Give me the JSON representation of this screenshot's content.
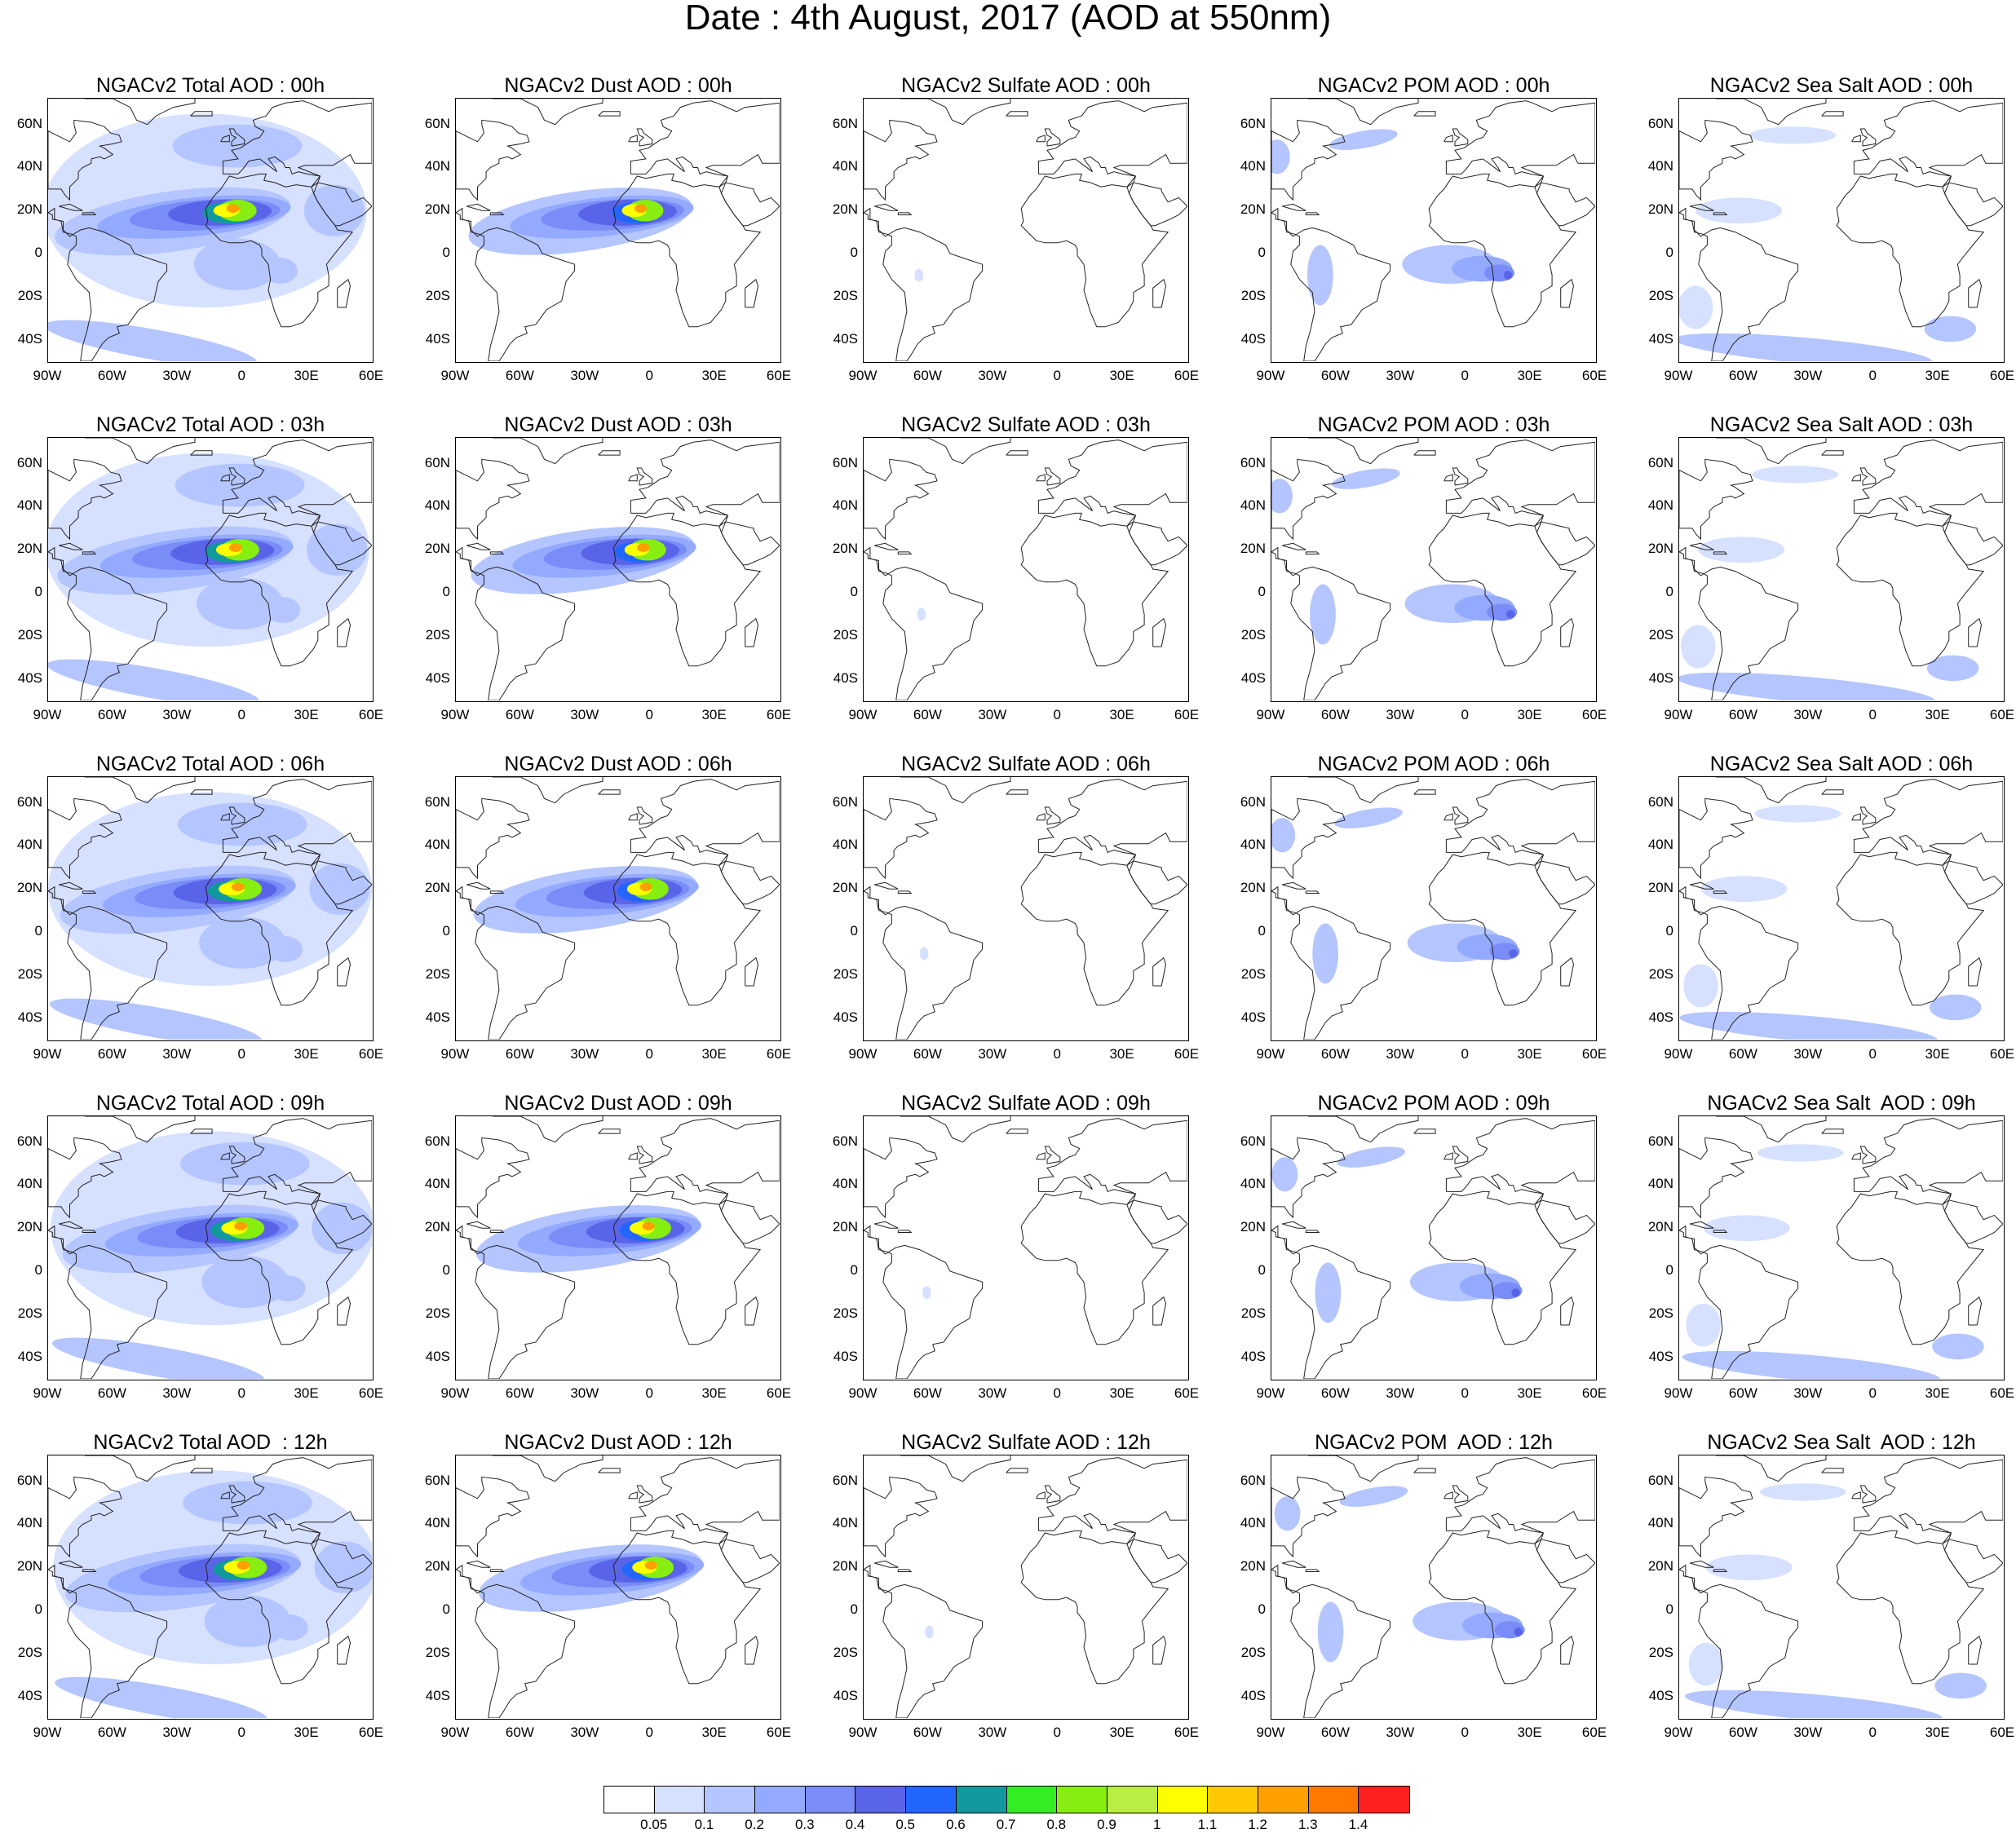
{
  "title": "Date : 4th August, 2017 (AOD at 550nm)",
  "lat_labels": [
    "60N",
    "40N",
    "20N",
    "0",
    "20S",
    "40S"
  ],
  "lon_labels": [
    "90W",
    "60W",
    "30W",
    "0",
    "30E",
    "60E"
  ],
  "row_hours": [
    "00h",
    "03h",
    "06h",
    "09h",
    "12h"
  ],
  "columns": [
    {
      "key": "total",
      "name": "Total AOD"
    },
    {
      "key": "dust",
      "name": "Dust AOD"
    },
    {
      "key": "sulfate",
      "name": "Sulfate AOD"
    },
    {
      "key": "pom",
      "name": "POM AOD"
    },
    {
      "key": "seasalt",
      "name": "Sea Salt AOD"
    }
  ],
  "panel_titles": [
    [
      "NGACv2 Total AOD : 00h",
      "NGACv2 Dust AOD : 00h",
      "NGACv2 Sulfate AOD : 00h",
      "NGACv2 POM AOD : 00h",
      "NGACv2 Sea Salt AOD : 00h"
    ],
    [
      "NGACv2 Total AOD : 03h",
      "NGACv2 Dust AOD : 03h",
      "NGACv2 Sulfate AOD : 03h",
      "NGACv2 POM AOD : 03h",
      "NGACv2 Sea Salt AOD : 03h"
    ],
    [
      "NGACv2 Total AOD : 06h",
      "NGACv2 Dust AOD : 06h",
      "NGACv2 Sulfate AOD : 06h",
      "NGACv2 POM AOD : 06h",
      "NGACv2 Sea Salt AOD : 06h"
    ],
    [
      "NGACv2 Total AOD : 09h",
      "NGACv2 Dust AOD : 09h",
      "NGACv2 Sulfate AOD : 09h",
      "NGACv2 POM AOD : 09h",
      "NGACv2 Sea Salt  AOD : 09h"
    ],
    [
      "NGACv2 Total AOD  : 12h",
      "NGACv2 Dust AOD : 12h",
      "NGACv2 Sulfate AOD : 12h",
      "NGACv2 POM  AOD : 12h",
      "NGACv2 Sea Salt  AOD : 12h"
    ]
  ],
  "colorbar": {
    "labels": [
      "0.05",
      "0.1",
      "0.2",
      "0.3",
      "0.4",
      "0.5",
      "0.6",
      "0.7",
      "0.8",
      "0.9",
      "1",
      "1.1",
      "1.2",
      "1.3",
      "1.4"
    ],
    "colors": [
      "#ffffff",
      "#d6e0ff",
      "#b4c5ff",
      "#94aaff",
      "#7a8cf7",
      "#5a64e8",
      "#2266ff",
      "#11999e",
      "#33ee22",
      "#88ee11",
      "#bbee44",
      "#ffff00",
      "#ffc800",
      "#ffa000",
      "#ff7800",
      "#ff2020"
    ]
  }
}
